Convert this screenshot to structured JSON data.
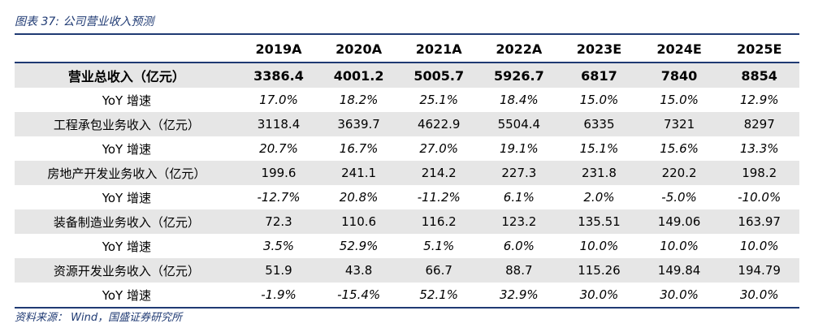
{
  "title": {
    "prefix": "图表 37:",
    "text": "公司营业收入预测"
  },
  "table": {
    "headers": [
      "",
      "2019A",
      "2020A",
      "2021A",
      "2022A",
      "2023E",
      "2024E",
      "2025E"
    ],
    "rows": [
      {
        "label": "营业总收入（亿元）",
        "values": [
          "3386.4",
          "4001.2",
          "5005.7",
          "5926.7",
          "6817",
          "7840",
          "8854"
        ]
      },
      {
        "label": "YoY 增速",
        "values": [
          "17.0%",
          "18.2%",
          "25.1%",
          "18.4%",
          "15.0%",
          "15.0%",
          "12.9%"
        ]
      },
      {
        "label": "工程承包业务收入（亿元）",
        "values": [
          "3118.4",
          "3639.7",
          "4622.9",
          "5504.4",
          "6335",
          "7321",
          "8297"
        ]
      },
      {
        "label": "YoY 增速",
        "values": [
          "20.7%",
          "16.7%",
          "27.0%",
          "19.1%",
          "15.1%",
          "15.6%",
          "13.3%"
        ]
      },
      {
        "label": "房地产开发业务收入（亿元）",
        "values": [
          "199.6",
          "241.1",
          "214.2",
          "227.3",
          "231.8",
          "220.2",
          "198.2"
        ]
      },
      {
        "label": "YoY 增速",
        "values": [
          "-12.7%",
          "20.8%",
          "-11.2%",
          "6.1%",
          "2.0%",
          "-5.0%",
          "-10.0%"
        ]
      },
      {
        "label": "装备制造业务收入（亿元）",
        "values": [
          "72.3",
          "110.6",
          "116.2",
          "123.2",
          "135.51",
          "149.06",
          "163.97"
        ]
      },
      {
        "label": "YoY 增速",
        "values": [
          "3.5%",
          "52.9%",
          "5.1%",
          "6.0%",
          "10.0%",
          "10.0%",
          "10.0%"
        ]
      },
      {
        "label": "资源开发业务收入（亿元）",
        "values": [
          "51.9",
          "43.8",
          "66.7",
          "88.7",
          "115.26",
          "149.84",
          "194.79"
        ]
      },
      {
        "label": "YoY 增速",
        "values": [
          "-1.9%",
          "-15.4%",
          "52.1%",
          "32.9%",
          "30.0%",
          "30.0%",
          "30.0%"
        ]
      }
    ]
  },
  "source": "资料来源： Wind，国盛证券研究所",
  "colors": {
    "accent": "#1f3a73",
    "shade": "#e6e6e6"
  }
}
